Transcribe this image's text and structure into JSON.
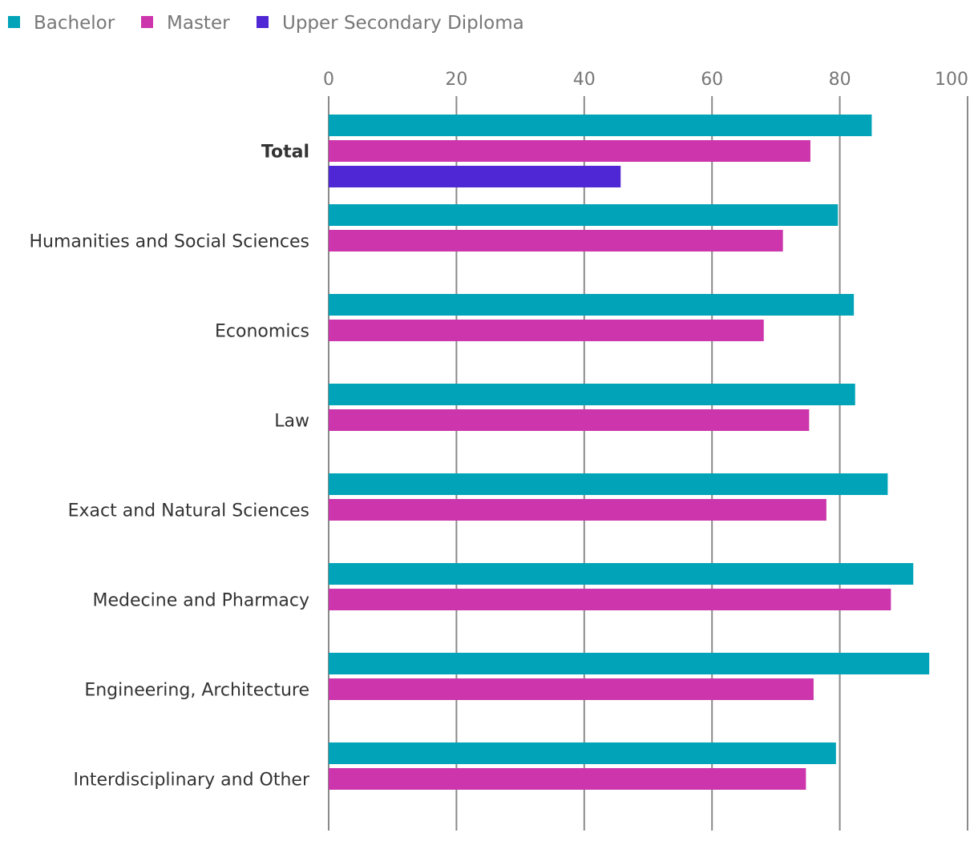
{
  "chart_data": {
    "type": "bar",
    "orientation": "horizontal",
    "title": "",
    "xlabel": "",
    "ylabel": "",
    "xlim": [
      0,
      100
    ],
    "ticks": [
      "0",
      "20",
      "40",
      "60",
      "80",
      "100"
    ],
    "tick_values": [
      0,
      20,
      40,
      60,
      80,
      100
    ],
    "legend_position": "top-left",
    "categories": [
      "Total",
      "Humanities and Social Sciences",
      "Economics",
      "Law",
      "Exact and Natural Sciences",
      "Medecine and Pharmacy",
      "Engineering, Architecture",
      "Interdisciplinary and Other"
    ],
    "bold_category": "Total",
    "series": [
      {
        "name": "Bachelor",
        "color": "#00a3b8",
        "values": [
          85,
          79.7,
          82.2,
          82.4,
          87.5,
          91.5,
          94,
          79.4
        ]
      },
      {
        "name": "Master",
        "color": "#cc35ab",
        "values": [
          75.4,
          71.1,
          68.1,
          75.2,
          77.9,
          88,
          75.9,
          74.7
        ]
      },
      {
        "name": "Upper Secondary Diploma",
        "color": "#5027d4",
        "values": [
          45.7,
          null,
          null,
          null,
          null,
          null,
          null,
          null
        ]
      }
    ]
  }
}
